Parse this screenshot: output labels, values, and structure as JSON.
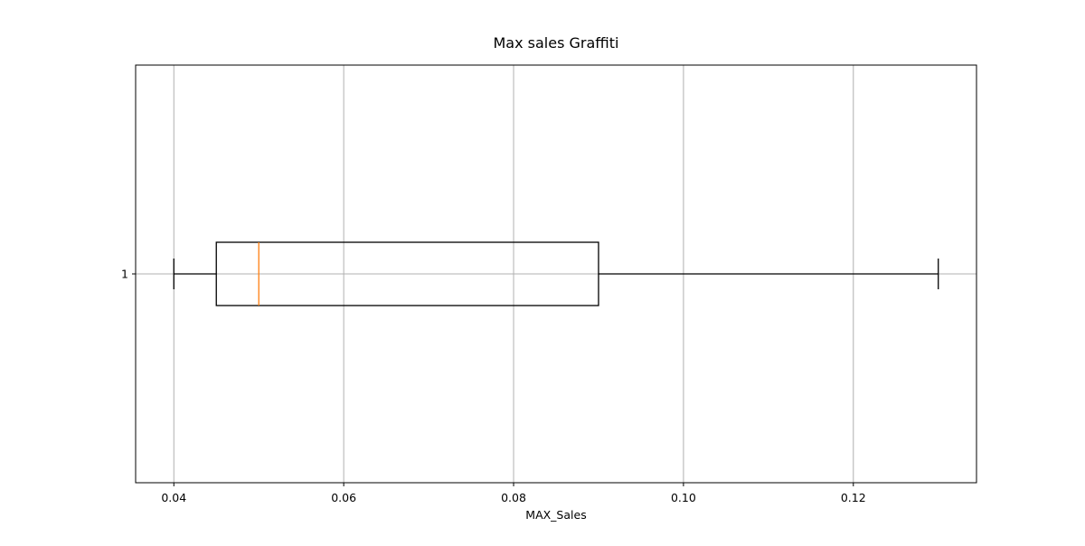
{
  "chart_data": {
    "type": "boxplot",
    "orientation": "horizontal",
    "title": "Max sales Graffiti",
    "xlabel": "MAX_Sales",
    "ylabel": "",
    "xlim": [
      0.0355,
      0.1345
    ],
    "x_ticks": [
      {
        "value": 0.04,
        "label": "0.04"
      },
      {
        "value": 0.06,
        "label": "0.06"
      },
      {
        "value": 0.08,
        "label": "0.08"
      },
      {
        "value": 0.1,
        "label": "0.10"
      },
      {
        "value": 0.12,
        "label": "0.12"
      }
    ],
    "y_ticks": [
      {
        "value": 1,
        "label": "1"
      }
    ],
    "grid": true,
    "series": [
      {
        "position": 1,
        "whisker_low": 0.04,
        "q1": 0.045,
        "median": 0.05,
        "q3": 0.09,
        "whisker_high": 0.13
      }
    ],
    "colors": {
      "box": "#000000",
      "median": "#ff7f0e",
      "grid": "#b0b0b0",
      "frame": "#000000"
    }
  }
}
